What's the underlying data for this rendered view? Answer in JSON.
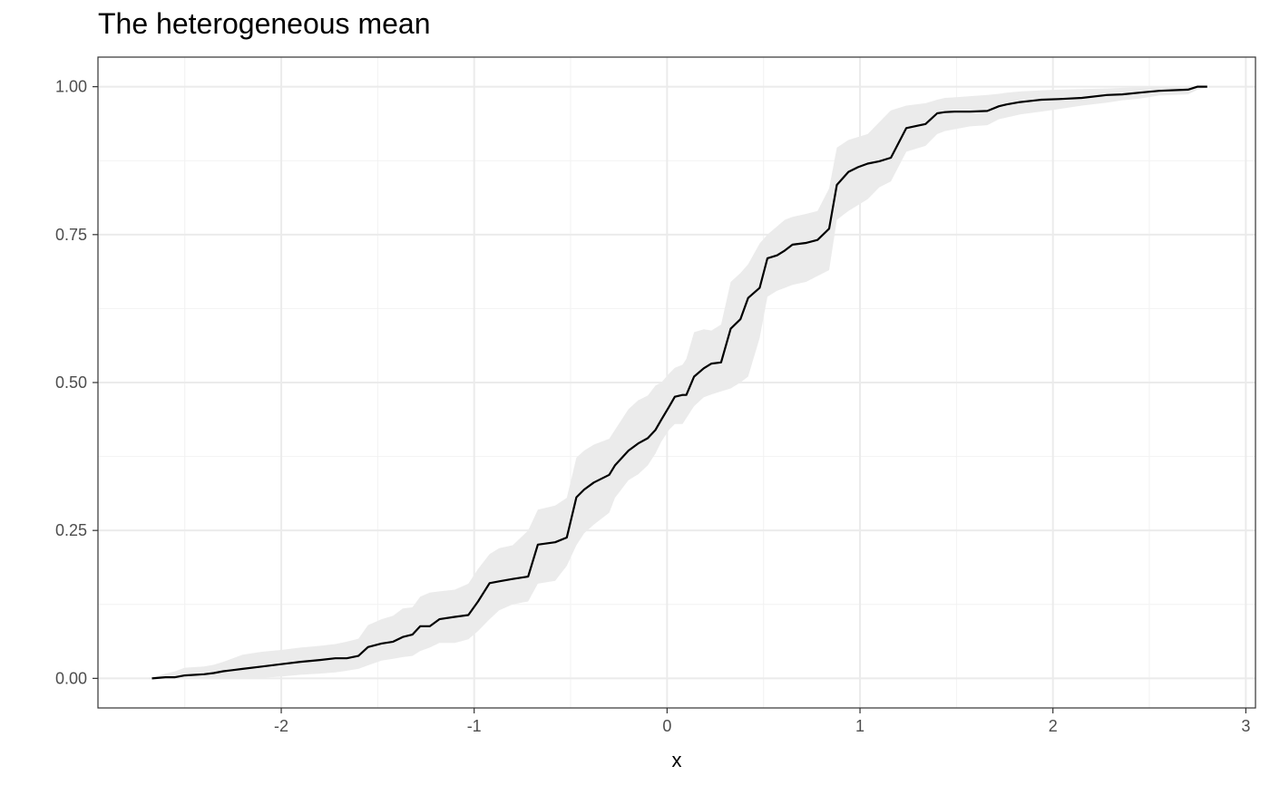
{
  "chart_data": {
    "type": "line",
    "title": "The heterogeneous mean",
    "xlabel": "x",
    "ylabel": "",
    "xlim": [
      -2.95,
      3.05
    ],
    "ylim": [
      -0.05,
      1.05
    ],
    "x_ticks": [
      -2,
      -1,
      0,
      1,
      2,
      3
    ],
    "x_tick_labels": [
      "-2",
      "-1",
      "0",
      "1",
      "2",
      "3"
    ],
    "y_ticks": [
      0,
      0.25,
      0.5,
      0.75,
      1
    ],
    "y_tick_labels": [
      "0.00",
      "0.25",
      "0.50",
      "0.75",
      "1.00"
    ],
    "grid": true,
    "line_color": "#000000",
    "band_color": "#ebebeb",
    "series": [
      {
        "x": [
          -2.67,
          -2.6,
          -2.55,
          -2.5,
          -2.4,
          -2.35,
          -2.3,
          -2.2,
          -2.1,
          -2.0,
          -1.9,
          -1.8,
          -1.72,
          -1.66,
          -1.6,
          -1.55,
          -1.48,
          -1.42,
          -1.37,
          -1.32,
          -1.28,
          -1.23,
          -1.18,
          -1.1,
          -1.03,
          -0.98,
          -0.92,
          -0.87,
          -0.8,
          -0.72,
          -0.67,
          -0.58,
          -0.52,
          -0.47,
          -0.43,
          -0.38,
          -0.3,
          -0.27,
          -0.2,
          -0.15,
          -0.1,
          -0.06,
          -0.03,
          0.01,
          0.04,
          0.08,
          0.1,
          0.14,
          0.19,
          0.23,
          0.28,
          0.33,
          0.38,
          0.42,
          0.48,
          0.52,
          0.57,
          0.61,
          0.65,
          0.72,
          0.78,
          0.84,
          0.88,
          0.94,
          0.99,
          1.04,
          1.1,
          1.16,
          1.24,
          1.34,
          1.4,
          1.44,
          1.49,
          1.57,
          1.66,
          1.72,
          1.76,
          1.83,
          1.94,
          2.03,
          2.15,
          2.28,
          2.36,
          2.45,
          2.55,
          2.7,
          2.75,
          2.8
        ],
        "y": [
          0.0,
          0.002,
          0.002,
          0.005,
          0.007,
          0.009,
          0.012,
          0.016,
          0.02,
          0.024,
          0.028,
          0.031,
          0.034,
          0.034,
          0.038,
          0.053,
          0.059,
          0.062,
          0.07,
          0.074,
          0.088,
          0.088,
          0.1,
          0.104,
          0.107,
          0.13,
          0.161,
          0.164,
          0.168,
          0.172,
          0.226,
          0.23,
          0.238,
          0.306,
          0.319,
          0.331,
          0.344,
          0.36,
          0.385,
          0.397,
          0.406,
          0.42,
          0.437,
          0.459,
          0.476,
          0.479,
          0.479,
          0.51,
          0.524,
          0.532,
          0.534,
          0.591,
          0.607,
          0.643,
          0.66,
          0.71,
          0.715,
          0.723,
          0.733,
          0.736,
          0.741,
          0.76,
          0.834,
          0.856,
          0.864,
          0.87,
          0.874,
          0.88,
          0.93,
          0.937,
          0.955,
          0.957,
          0.958,
          0.958,
          0.959,
          0.967,
          0.97,
          0.974,
          0.978,
          0.979,
          0.981,
          0.986,
          0.987,
          0.99,
          0.993,
          0.995,
          1.0,
          1.0
        ],
        "lower": [
          0.0,
          0.0,
          0.0,
          0.0,
          0.0,
          0.0,
          0.0,
          0.0,
          0.001,
          0.003,
          0.006,
          0.008,
          0.01,
          0.013,
          0.016,
          0.022,
          0.03,
          0.033,
          0.036,
          0.038,
          0.046,
          0.052,
          0.06,
          0.06,
          0.066,
          0.08,
          0.1,
          0.115,
          0.125,
          0.13,
          0.16,
          0.165,
          0.19,
          0.225,
          0.245,
          0.26,
          0.28,
          0.305,
          0.335,
          0.345,
          0.36,
          0.38,
          0.4,
          0.42,
          0.43,
          0.43,
          0.44,
          0.46,
          0.475,
          0.48,
          0.485,
          0.49,
          0.5,
          0.51,
          0.575,
          0.645,
          0.655,
          0.66,
          0.665,
          0.67,
          0.68,
          0.69,
          0.775,
          0.79,
          0.8,
          0.81,
          0.83,
          0.84,
          0.89,
          0.9,
          0.92,
          0.925,
          0.928,
          0.933,
          0.935,
          0.945,
          0.948,
          0.953,
          0.958,
          0.962,
          0.968,
          0.973,
          0.977,
          0.98,
          0.985,
          0.987,
          0.995,
          0.998
        ],
        "upper": [
          0.001,
          0.008,
          0.012,
          0.018,
          0.02,
          0.023,
          0.028,
          0.04,
          0.045,
          0.048,
          0.052,
          0.055,
          0.058,
          0.062,
          0.067,
          0.09,
          0.1,
          0.106,
          0.118,
          0.12,
          0.138,
          0.145,
          0.147,
          0.15,
          0.16,
          0.185,
          0.21,
          0.22,
          0.225,
          0.25,
          0.285,
          0.292,
          0.305,
          0.373,
          0.385,
          0.395,
          0.405,
          0.42,
          0.455,
          0.47,
          0.478,
          0.495,
          0.5,
          0.515,
          0.525,
          0.53,
          0.54,
          0.585,
          0.59,
          0.588,
          0.598,
          0.67,
          0.685,
          0.7,
          0.735,
          0.75,
          0.764,
          0.775,
          0.78,
          0.785,
          0.79,
          0.828,
          0.897,
          0.91,
          0.915,
          0.92,
          0.94,
          0.96,
          0.968,
          0.972,
          0.978,
          0.981,
          0.982,
          0.984,
          0.986,
          0.988,
          0.99,
          0.992,
          0.994,
          0.995,
          0.996,
          0.997,
          0.998,
          0.999,
          1.0,
          1.0,
          1.0,
          1.0
        ]
      }
    ]
  }
}
